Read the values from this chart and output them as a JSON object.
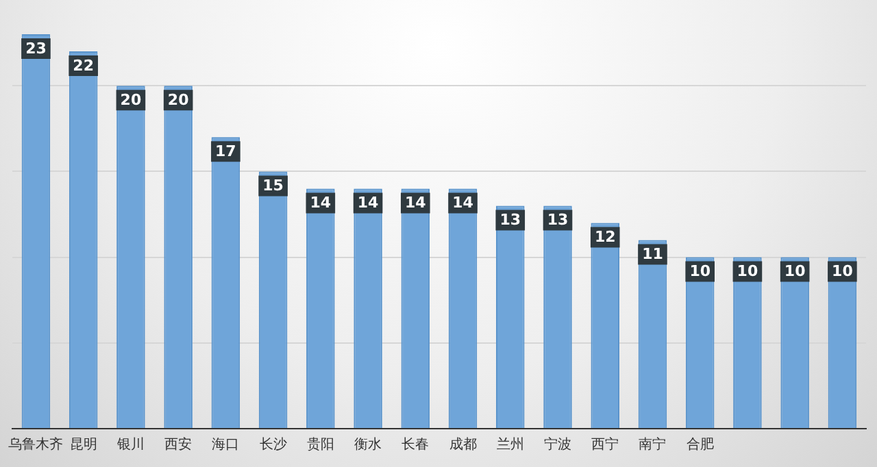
{
  "chart_data": {
    "type": "bar",
    "categories": [
      "乌鲁木齐",
      "昆明",
      "银川",
      "西安",
      "海口",
      "长沙",
      "贵阳",
      "衡水",
      "长春",
      "成都",
      "兰州",
      "宁波",
      "西宁",
      "南宁",
      "合肥",
      null,
      null,
      null
    ],
    "values": [
      23,
      22,
      20,
      20,
      17,
      15,
      14,
      14,
      14,
      14,
      13,
      13,
      12,
      11,
      10,
      10,
      10,
      10
    ],
    "color": "#6fa5d9",
    "yticks": [
      {
        "value": 0,
        "label": null
      },
      {
        "value": 5,
        "label": null
      },
      {
        "value": 10,
        "label": null
      },
      {
        "value": 15,
        "label": null
      },
      {
        "value": 20,
        "label": null
      }
    ],
    "grid": "y",
    "tick_labels": "x",
    "data_labels": true,
    "legend": false
  }
}
